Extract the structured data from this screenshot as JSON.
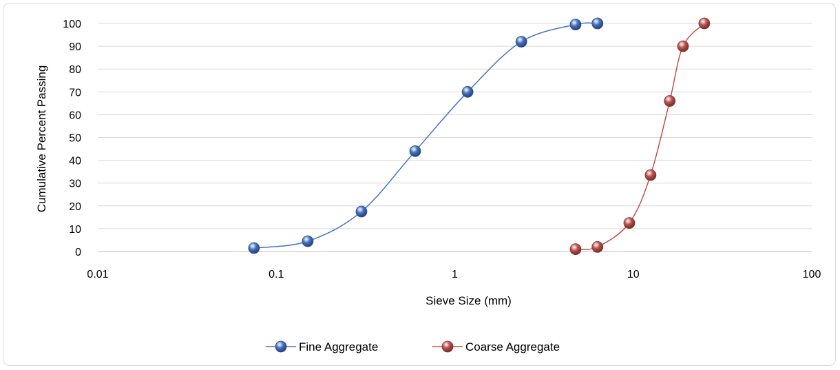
{
  "chart_data": {
    "type": "scatter",
    "title": "",
    "xlabel": "Sieve Size (mm)",
    "ylabel": "Cumulative Percent Passing",
    "x_scale": "log",
    "xlim": [
      0.01,
      100
    ],
    "ylim": [
      0,
      100
    ],
    "x_ticks": [
      0.01,
      0.1,
      1,
      10,
      100
    ],
    "x_tick_labels": [
      "0.01",
      "0.1",
      "1",
      "10",
      "100"
    ],
    "y_ticks": [
      0,
      10,
      20,
      30,
      40,
      50,
      60,
      70,
      80,
      90,
      100
    ],
    "y_tick_labels": [
      "0",
      "10",
      "20",
      "30",
      "40",
      "50",
      "60",
      "70",
      "80",
      "90",
      "100"
    ],
    "grid": "horizontal",
    "legend_position": "bottom",
    "smooth_lines": true,
    "series": [
      {
        "name": "Fine Aggregate",
        "color": "#4472C4",
        "x": [
          0.075,
          0.15,
          0.3,
          0.6,
          1.18,
          2.36,
          4.75,
          6.3
        ],
        "y": [
          1.5,
          4.5,
          17.5,
          44,
          70,
          92,
          99.5,
          100
        ]
      },
      {
        "name": "Coarse Aggregate",
        "color": "#C0504D",
        "x": [
          4.75,
          6.3,
          9.5,
          12.5,
          16,
          19,
          25
        ],
        "y": [
          1,
          2,
          12.5,
          33.5,
          66,
          90,
          100
        ]
      }
    ]
  }
}
